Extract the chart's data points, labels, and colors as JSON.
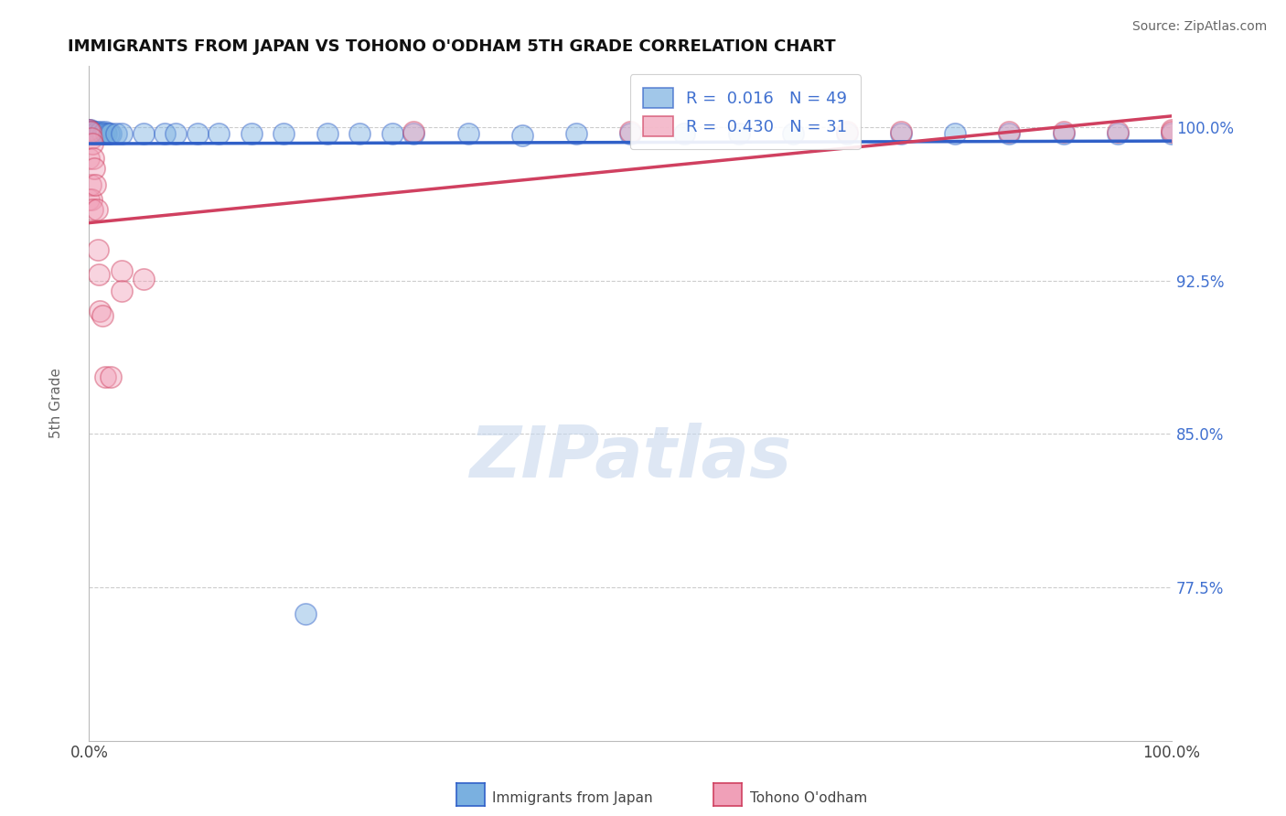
{
  "title": "IMMIGRANTS FROM JAPAN VS TOHONO O'ODHAM 5TH GRADE CORRELATION CHART",
  "source": "Source: ZipAtlas.com",
  "ylabel": "5th Grade",
  "xlim": [
    0.0,
    1.0
  ],
  "ylim": [
    0.7,
    1.03
  ],
  "yticks": [
    0.775,
    0.85,
    0.925,
    1.0
  ],
  "ytick_labels": [
    "77.5%",
    "85.0%",
    "92.5%",
    "100.0%"
  ],
  "xticks": [
    0.0,
    1.0
  ],
  "xtick_labels": [
    "0.0%",
    "100.0%"
  ],
  "legend_labels": [
    "Immigrants from Japan",
    "Tohono O'odham"
  ],
  "legend_R": [
    0.016,
    0.43
  ],
  "legend_N": [
    49,
    31
  ],
  "blue_color": "#7ab0e0",
  "pink_color": "#f0a0b8",
  "blue_line_color": "#3060c8",
  "pink_line_color": "#d04060",
  "grid_color": "#cccccc",
  "background_color": "#ffffff",
  "blue_x": [
    0.0,
    0.0,
    0.001,
    0.001,
    0.002,
    0.002,
    0.003,
    0.004,
    0.005,
    0.006,
    0.007,
    0.008,
    0.009,
    0.01,
    0.011,
    0.012,
    0.013,
    0.015,
    0.016,
    0.018,
    0.02,
    0.025,
    0.03,
    0.05,
    0.07,
    0.08,
    0.1,
    0.12,
    0.15,
    0.18,
    0.22,
    0.25,
    0.28,
    0.3,
    0.35,
    0.4,
    0.45,
    0.5,
    0.55,
    0.6,
    0.65,
    0.7,
    0.75,
    0.8,
    0.85,
    0.9,
    0.95,
    1.0,
    0.2
  ],
  "blue_y": [
    0.999,
    0.998,
    0.999,
    0.998,
    0.998,
    0.997,
    0.998,
    0.998,
    0.997,
    0.997,
    0.998,
    0.997,
    0.997,
    0.997,
    0.998,
    0.997,
    0.997,
    0.998,
    0.997,
    0.997,
    0.997,
    0.997,
    0.997,
    0.997,
    0.997,
    0.997,
    0.997,
    0.997,
    0.997,
    0.997,
    0.997,
    0.997,
    0.997,
    0.997,
    0.997,
    0.996,
    0.997,
    0.997,
    0.997,
    0.997,
    0.997,
    0.997,
    0.997,
    0.997,
    0.997,
    0.997,
    0.997,
    0.997,
    0.762
  ],
  "pink_x": [
    0.0,
    0.0,
    0.0,
    0.001,
    0.001,
    0.002,
    0.002,
    0.003,
    0.003,
    0.004,
    0.005,
    0.006,
    0.007,
    0.008,
    0.009,
    0.01,
    0.012,
    0.015,
    0.02,
    0.03,
    0.03,
    0.05,
    0.3,
    0.5,
    0.7,
    0.75,
    0.85,
    0.9,
    0.95,
    1.0,
    1.0
  ],
  "pink_y": [
    0.999,
    0.985,
    0.965,
    0.998,
    0.972,
    0.995,
    0.965,
    0.992,
    0.96,
    0.985,
    0.98,
    0.972,
    0.96,
    0.94,
    0.928,
    0.91,
    0.908,
    0.878,
    0.878,
    0.93,
    0.92,
    0.926,
    0.998,
    0.998,
    0.998,
    0.998,
    0.998,
    0.998,
    0.998,
    0.999,
    0.998
  ]
}
